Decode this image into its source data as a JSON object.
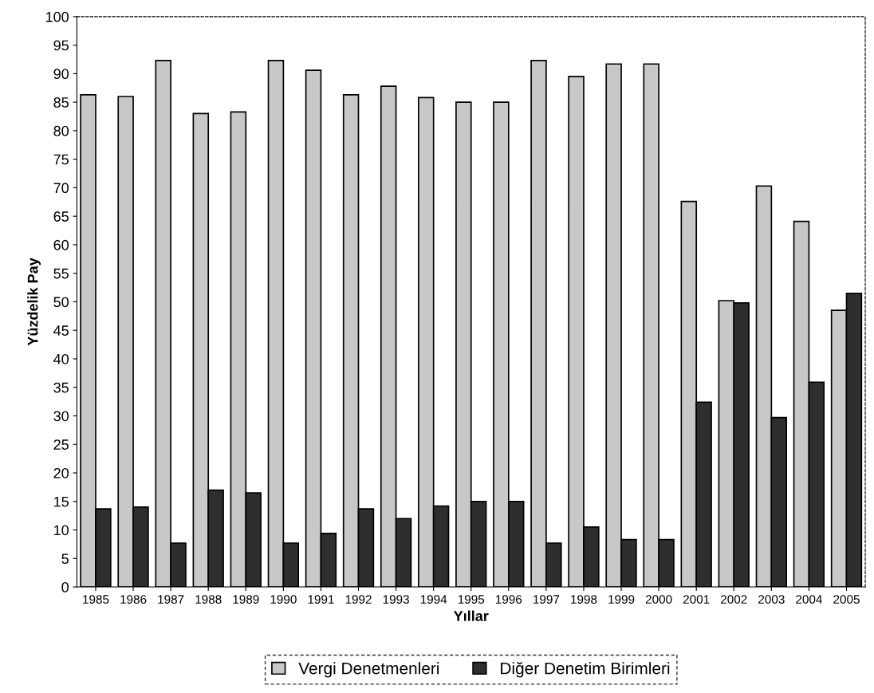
{
  "chart_data": {
    "type": "bar",
    "xlabel": "Yıllar",
    "ylabel": "Yüzdelik Pay",
    "categories": [
      "1985",
      "1986",
      "1987",
      "1988",
      "1989",
      "1990",
      "1991",
      "1992",
      "1993",
      "1994",
      "1995",
      "1996",
      "1997",
      "1998",
      "1999",
      "2000",
      "2001",
      "2002",
      "2003",
      "2004",
      "2005"
    ],
    "series": [
      {
        "name": "Vergi Denetmenleri",
        "color": "#c8c8c8",
        "values": [
          86.3,
          86,
          92.3,
          83,
          83.3,
          92.3,
          90.6,
          86.3,
          87.8,
          85.8,
          85,
          85,
          92.3,
          89.5,
          91.7,
          91.7,
          67.6,
          50.2,
          70.3,
          64.1,
          48.5
        ]
      },
      {
        "name": "Diğer Denetim Birimleri",
        "color": "#2e2e2e",
        "values": [
          13.7,
          14,
          7.7,
          17,
          16.5,
          7.7,
          9.4,
          13.7,
          12,
          14.2,
          15,
          15,
          7.7,
          10.5,
          8.3,
          8.3,
          32.4,
          49.8,
          29.7,
          35.9,
          51.5
        ]
      }
    ],
    "ylim": [
      0,
      100
    ],
    "yticks": [
      0,
      5,
      10,
      15,
      20,
      25,
      30,
      35,
      40,
      45,
      50,
      55,
      60,
      65,
      70,
      75,
      80,
      85,
      90,
      95,
      100
    ],
    "grid": false,
    "legend": "bottom"
  }
}
